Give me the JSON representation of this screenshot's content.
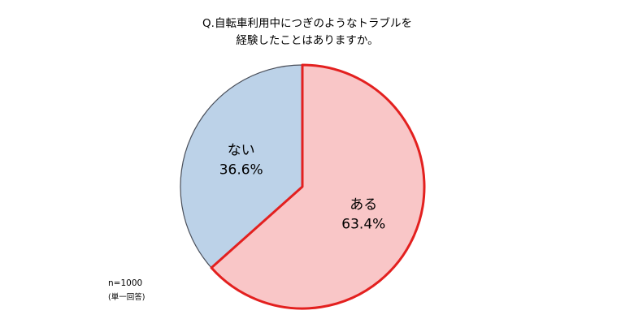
{
  "chart_data": {
    "type": "pie",
    "title": [
      "Q.自転車利用中につぎのようなトラブルを",
      "経験したことはありますか。"
    ],
    "slices": [
      {
        "label": "ある",
        "value": 63.4,
        "value_label": "63.4%",
        "fill": "#f9c6c7",
        "stroke": "#e3201f"
      },
      {
        "label": "ない",
        "value": 36.6,
        "value_label": "36.6%",
        "fill": "#bcd2e8",
        "stroke": "#4a4f5a"
      }
    ],
    "start_angle": "12 o'clock",
    "direction": "clockwise",
    "legend": "none"
  },
  "notes": {
    "sample_size": "n=1000",
    "answer_type": "(単一回答)"
  }
}
